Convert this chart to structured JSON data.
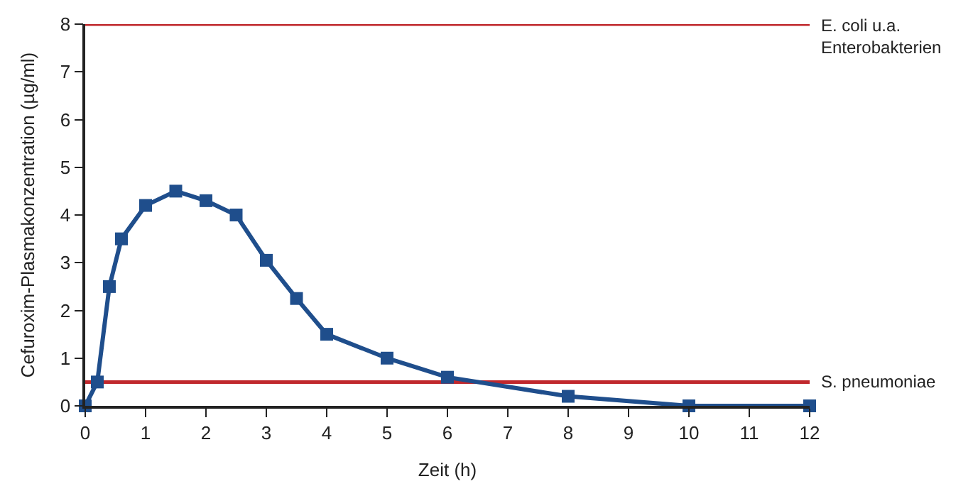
{
  "chart_data": {
    "type": "line",
    "xlabel": "Zeit (h)",
    "ylabel": "Cefuroxim-Plasmakonzentration (µg/ml)",
    "x": [
      0,
      0.2,
      0.4,
      0.6,
      1,
      1.5,
      2,
      2.5,
      3,
      3.5,
      4,
      5,
      6,
      8,
      10,
      12
    ],
    "series": [
      {
        "color": "#1f4e8c",
        "values": [
          0,
          0.5,
          2.5,
          3.5,
          4.2,
          4.5,
          4.3,
          4.0,
          3.05,
          2.25,
          1.5,
          1.0,
          0.6,
          0.2,
          0,
          0
        ]
      }
    ],
    "xlim": [
      0,
      12
    ],
    "xticks": [
      0,
      1,
      2,
      3,
      4,
      5,
      6,
      7,
      8,
      9,
      10,
      11,
      12
    ],
    "ylim": [
      0,
      8
    ],
    "yticks": [
      0,
      1,
      2,
      3,
      4,
      5,
      6,
      7,
      8
    ],
    "ref_lines": [
      {
        "axis": "y",
        "value": 8,
        "label": "E. coli u.a.\nEnterobakterien",
        "color": "#c0282d"
      },
      {
        "axis": "y",
        "value": 0.5,
        "label": "S. pneumoniae",
        "color": "#c0282d"
      }
    ],
    "marker": "square",
    "line_style": "solid",
    "grid": false,
    "legend": false
  }
}
